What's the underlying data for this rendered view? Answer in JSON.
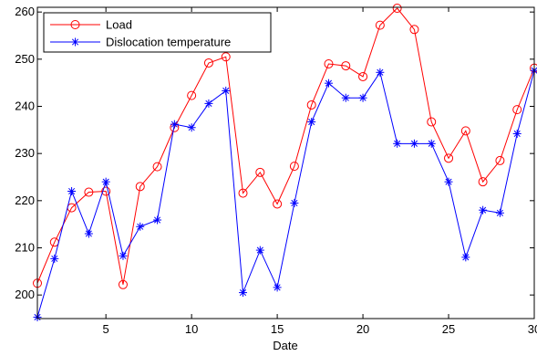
{
  "chart_data": {
    "type": "line",
    "xlabel": "Date",
    "ylabel": "",
    "xlim": [
      1,
      30
    ],
    "ylim": [
      195,
      261
    ],
    "xticks": [
      5,
      10,
      15,
      20,
      25,
      30
    ],
    "yticks": [
      200,
      210,
      220,
      230,
      240,
      250,
      260
    ],
    "grid": false,
    "legend_position": "top-left",
    "x": [
      1,
      2,
      3,
      4,
      5,
      6,
      7,
      8,
      9,
      10,
      11,
      12,
      13,
      14,
      15,
      16,
      17,
      18,
      19,
      20,
      21,
      22,
      23,
      24,
      25,
      26,
      27,
      28,
      29,
      30
    ],
    "series": [
      {
        "name": "Load",
        "color": "#ff0000",
        "marker": "circle",
        "values": [
          202.5,
          211.2,
          218.5,
          221.8,
          222.0,
          202.2,
          223.0,
          227.2,
          235.5,
          242.3,
          249.2,
          250.5,
          221.6,
          226.0,
          219.3,
          227.3,
          240.3,
          249.0,
          248.6,
          246.3,
          257.2,
          260.8,
          256.3,
          236.7,
          229.0,
          234.8,
          224.0,
          228.5,
          239.3,
          248.1
        ]
      },
      {
        "name": "Dislocation temperature",
        "color": "#0000ff",
        "marker": "asterisk",
        "values": [
          195.3,
          207.7,
          222.0,
          213.0,
          224.0,
          208.3,
          214.5,
          215.9,
          236.2,
          235.5,
          240.6,
          243.3,
          200.5,
          209.5,
          201.6,
          219.5,
          236.7,
          244.9,
          241.8,
          241.8,
          247.2,
          232.1,
          232.1,
          232.1,
          224.0,
          208.0,
          218.0,
          217.4,
          234.2,
          247.6
        ]
      }
    ]
  }
}
